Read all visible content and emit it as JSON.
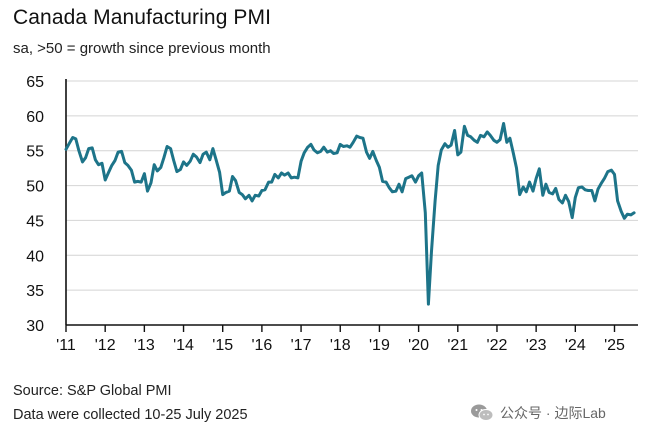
{
  "chart_data": {
    "type": "line",
    "title": "Canada Manufacturing PMI",
    "subtitle": "sa, >50 = growth since previous month",
    "xlabel": "",
    "ylabel": "",
    "ylim": [
      30,
      65
    ],
    "xlim": [
      2011.0,
      2025.6
    ],
    "yticks": [
      30,
      35,
      40,
      45,
      50,
      55,
      60,
      65
    ],
    "xticks": [
      {
        "value": 2011,
        "label": "'11"
      },
      {
        "value": 2012,
        "label": "'12"
      },
      {
        "value": 2013,
        "label": "'13"
      },
      {
        "value": 2014,
        "label": "'14"
      },
      {
        "value": 2015,
        "label": "'15"
      },
      {
        "value": 2016,
        "label": "'16"
      },
      {
        "value": 2017,
        "label": "'17"
      },
      {
        "value": 2018,
        "label": "'18"
      },
      {
        "value": 2019,
        "label": "'19"
      },
      {
        "value": 2020,
        "label": "'20"
      },
      {
        "value": 2021,
        "label": "'21"
      },
      {
        "value": 2022,
        "label": "'22"
      },
      {
        "value": 2023,
        "label": "'23"
      },
      {
        "value": 2024,
        "label": "'24"
      },
      {
        "value": 2025,
        "label": "'25"
      }
    ],
    "grid": true,
    "series": [
      {
        "name": "Canada Manufacturing PMI",
        "color": "#1d7489",
        "x": [
          2011.0,
          2011.08,
          2011.17,
          2011.25,
          2011.33,
          2011.42,
          2011.5,
          2011.58,
          2011.67,
          2011.75,
          2011.83,
          2011.92,
          2012.0,
          2012.08,
          2012.17,
          2012.25,
          2012.33,
          2012.42,
          2012.5,
          2012.58,
          2012.67,
          2012.75,
          2012.83,
          2012.92,
          2013.0,
          2013.08,
          2013.17,
          2013.25,
          2013.33,
          2013.42,
          2013.5,
          2013.58,
          2013.67,
          2013.75,
          2013.83,
          2013.92,
          2014.0,
          2014.08,
          2014.17,
          2014.25,
          2014.33,
          2014.42,
          2014.5,
          2014.58,
          2014.67,
          2014.75,
          2014.83,
          2014.92,
          2015.0,
          2015.08,
          2015.17,
          2015.25,
          2015.33,
          2015.42,
          2015.5,
          2015.58,
          2015.67,
          2015.75,
          2015.83,
          2015.92,
          2016.0,
          2016.08,
          2016.17,
          2016.25,
          2016.33,
          2016.42,
          2016.5,
          2016.58,
          2016.67,
          2016.75,
          2016.83,
          2016.92,
          2017.0,
          2017.08,
          2017.17,
          2017.25,
          2017.33,
          2017.42,
          2017.5,
          2017.58,
          2017.67,
          2017.75,
          2017.83,
          2017.92,
          2018.0,
          2018.08,
          2018.17,
          2018.25,
          2018.33,
          2018.42,
          2018.5,
          2018.58,
          2018.67,
          2018.75,
          2018.83,
          2018.92,
          2019.0,
          2019.08,
          2019.17,
          2019.25,
          2019.33,
          2019.42,
          2019.5,
          2019.58,
          2019.67,
          2019.75,
          2019.83,
          2019.92,
          2020.0,
          2020.08,
          2020.17,
          2020.25,
          2020.33,
          2020.42,
          2020.5,
          2020.58,
          2020.67,
          2020.75,
          2020.83,
          2020.92,
          2021.0,
          2021.08,
          2021.17,
          2021.25,
          2021.33,
          2021.42,
          2021.5,
          2021.58,
          2021.67,
          2021.75,
          2021.83,
          2021.92,
          2022.0,
          2022.08,
          2022.17,
          2022.25,
          2022.33,
          2022.42,
          2022.5,
          2022.58,
          2022.67,
          2022.75,
          2022.83,
          2022.92,
          2023.0,
          2023.08,
          2023.17,
          2023.25,
          2023.33,
          2023.42,
          2023.5,
          2023.58,
          2023.67,
          2023.75,
          2023.83,
          2023.92,
          2024.0,
          2024.08,
          2024.17,
          2024.25,
          2024.33,
          2024.42,
          2024.5,
          2024.58,
          2024.67,
          2024.75,
          2024.83,
          2024.92,
          2025.0,
          2025.08,
          2025.17,
          2025.25,
          2025.33,
          2025.42,
          2025.5
        ],
        "values": [
          55.2,
          56.0,
          56.9,
          56.7,
          55.0,
          53.4,
          54.0,
          55.3,
          55.4,
          53.7,
          53.0,
          53.2,
          50.8,
          51.8,
          52.9,
          53.6,
          54.8,
          54.9,
          53.3,
          52.9,
          52.2,
          50.5,
          50.6,
          50.5,
          51.7,
          49.2,
          50.4,
          53.0,
          52.1,
          52.6,
          54.0,
          55.6,
          55.3,
          53.6,
          52.0,
          52.3,
          53.4,
          52.9,
          53.5,
          54.5,
          54.1,
          53.3,
          54.5,
          54.8,
          53.7,
          55.3,
          53.7,
          51.9,
          48.7,
          49.0,
          49.2,
          51.3,
          50.7,
          49.0,
          48.7,
          48.1,
          48.6,
          47.8,
          48.6,
          48.5,
          49.3,
          49.4,
          50.5,
          50.5,
          51.6,
          51.1,
          51.8,
          51.5,
          51.8,
          51.1,
          51.2,
          51.1,
          53.5,
          54.7,
          55.5,
          55.9,
          55.1,
          54.7,
          54.9,
          55.5,
          54.8,
          55.0,
          54.6,
          54.7,
          55.9,
          55.6,
          55.7,
          55.5,
          56.2,
          57.1,
          56.9,
          56.8,
          54.8,
          53.9,
          54.9,
          53.6,
          52.6,
          50.6,
          50.5,
          49.7,
          49.1,
          49.2,
          50.2,
          49.1,
          51.0,
          51.2,
          51.4,
          50.5,
          51.4,
          51.8,
          46.1,
          33.0,
          40.6,
          47.8,
          52.9,
          55.1,
          56.0,
          55.5,
          55.8,
          57.9,
          54.4,
          54.8,
          58.5,
          57.2,
          57.0,
          56.5,
          56.2,
          57.2,
          57.0,
          57.7,
          57.2,
          56.5,
          56.2,
          56.6,
          58.9,
          56.2,
          56.8,
          54.6,
          52.5,
          48.7,
          49.8,
          49.1,
          50.5,
          49.2,
          51.0,
          52.4,
          48.6,
          50.2,
          49.0,
          48.8,
          49.6,
          48.0,
          47.5,
          48.6,
          47.7,
          45.4,
          48.3,
          49.7,
          49.8,
          49.4,
          49.3,
          49.3,
          47.8,
          49.5,
          50.4,
          51.1,
          52.0,
          52.2,
          51.6,
          47.8,
          46.3,
          45.3,
          45.9,
          45.8,
          46.1
        ]
      }
    ]
  },
  "footer": {
    "source": "Source: S&P Global PMI",
    "collected": "Data were collected 10-25 July 2025"
  },
  "watermark": {
    "text": "公众号 · 边际Lab",
    "icon": "wechat-icon"
  }
}
